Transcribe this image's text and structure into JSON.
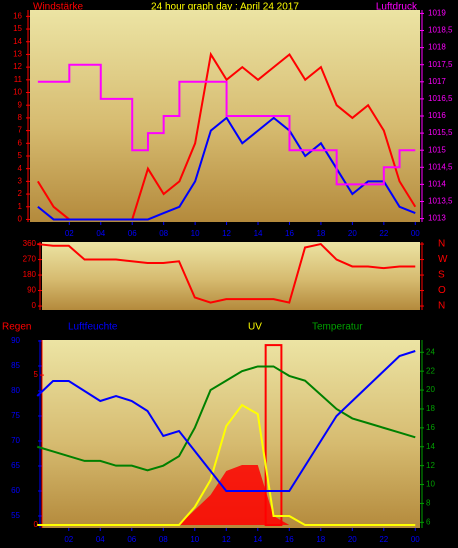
{
  "chart_data": [
    {
      "type": "line",
      "title": "24 hour graph day : April 24 2017",
      "y_label": "Windstärke",
      "y2_label": "Luftdruck",
      "x": [
        0,
        1,
        2,
        3,
        4,
        5,
        6,
        7,
        8,
        9,
        10,
        11,
        12,
        13,
        14,
        15,
        16,
        17,
        18,
        19,
        20,
        21,
        22,
        23,
        24
      ],
      "xlim": [
        -0.5,
        24.3
      ],
      "xticks": [
        {
          "value": 2,
          "label": "02"
        },
        {
          "value": 4,
          "label": "04"
        },
        {
          "value": 6,
          "label": "06"
        },
        {
          "value": 8,
          "label": "08"
        },
        10,
        12,
        14,
        16,
        18,
        20,
        22,
        {
          "value": 24,
          "label": "00"
        }
      ],
      "ylim": [
        -0.2,
        16.5
      ],
      "yticks": [
        0,
        1,
        2,
        3,
        4,
        5,
        6,
        7,
        8,
        9,
        10,
        11,
        12,
        13,
        14,
        15,
        16
      ],
      "y2lim": [
        1012.9,
        1019.1
      ],
      "y2ticks": [
        1013,
        {
          "value": 1013.5,
          "label": "1013,5"
        },
        1014,
        {
          "value": 1014.5,
          "label": "1014,5"
        },
        1015,
        {
          "value": 1015.5,
          "label": "1015,5"
        },
        1016,
        {
          "value": 1016.5,
          "label": "1016,5"
        },
        1017,
        {
          "value": 1017.5,
          "label": "1017,5"
        },
        1018,
        {
          "value": 1018.5,
          "label": "1018,5"
        },
        1019
      ],
      "series": [
        {
          "color": "#ff0000",
          "values": [
            3,
            1,
            0,
            0,
            0,
            0,
            0,
            4,
            2,
            3,
            6,
            13,
            11,
            12,
            11,
            12,
            13,
            11,
            12,
            9,
            8,
            9,
            7,
            3,
            1
          ]
        },
        {
          "color": "#0000ff",
          "values": [
            1,
            0,
            0,
            0,
            0,
            0,
            0,
            0,
            0.5,
            1,
            3,
            7,
            8,
            6,
            7,
            8,
            7,
            5,
            6,
            4,
            2,
            3,
            3,
            1,
            0.5
          ]
        },
        {
          "color": "#ff00ff",
          "axis": "y2",
          "step": true,
          "values": [
            1017,
            1017,
            1017.5,
            1017.5,
            1016.5,
            1016.5,
            1015,
            1015.5,
            1016,
            1017,
            1017,
            1017,
            1016,
            1016,
            1016,
            1016,
            1015,
            1015,
            1015,
            1014,
            1014,
            1014,
            1014.5,
            1015,
            1015
          ]
        }
      ]
    },
    {
      "type": "line",
      "x": [
        0,
        1,
        2,
        3,
        4,
        5,
        6,
        7,
        8,
        9,
        10,
        11,
        12,
        13,
        14,
        15,
        16,
        17,
        18,
        19,
        20,
        21,
        22,
        23,
        24
      ],
      "xlim": [
        0.3,
        24.3
      ],
      "ylim": [
        -23,
        372
      ],
      "yticks": [
        0,
        90,
        180,
        270,
        360
      ],
      "y2lim": [
        -23,
        372
      ],
      "y2ticks": [
        {
          "value": 360,
          "label": "N"
        },
        {
          "value": 270,
          "label": "W"
        },
        {
          "value": 180,
          "label": "S"
        },
        {
          "value": 90,
          "label": "O"
        },
        {
          "value": 0,
          "label": "N"
        }
      ],
      "series": [
        {
          "color": "#ff0000",
          "values": [
            360,
            350,
            350,
            270,
            270,
            270,
            260,
            250,
            250,
            260,
            50,
            20,
            40,
            40,
            40,
            40,
            20,
            340,
            360,
            270,
            230,
            230,
            220,
            230,
            230
          ]
        }
      ]
    },
    {
      "type": "line",
      "y_label": "Luftfeuchte",
      "y2_label": "Temperatur",
      "y3_label": "Regen",
      "uv_label": "UV",
      "x": [
        0,
        1,
        2,
        3,
        4,
        5,
        6,
        7,
        8,
        9,
        10,
        11,
        12,
        13,
        14,
        15,
        16,
        17,
        18,
        19,
        20,
        21,
        22,
        23,
        24
      ],
      "xlim": [
        0.3,
        24.3
      ],
      "xticks": [
        {
          "value": 2,
          "label": "02"
        },
        {
          "value": 4,
          "label": "04"
        },
        {
          "value": 6,
          "label": "06"
        },
        {
          "value": 8,
          "label": "08"
        },
        10,
        12,
        14,
        16,
        18,
        20,
        22,
        {
          "value": 24,
          "label": "00"
        }
      ],
      "ylim": [
        52.6,
        90.2
      ],
      "yticks": [
        55,
        60,
        65,
        70,
        75,
        80,
        85,
        90
      ],
      "y2lim": [
        5.4,
        25.3
      ],
      "y2ticks": [
        6,
        8,
        10,
        12,
        14,
        16,
        18,
        20,
        22,
        24
      ],
      "y3lim": [
        -0.1,
        6.17
      ],
      "y3ticks": [
        0,
        5
      ],
      "series": [
        {
          "color": "#ff0000",
          "axis": "y3",
          "kind": "area",
          "values": [
            0,
            0,
            0,
            0,
            0,
            0,
            0,
            0,
            0,
            0,
            0.5,
            1,
            1.8,
            2,
            2,
            0.3,
            0,
            0,
            0,
            0,
            0,
            0,
            0,
            0,
            0
          ]
        },
        {
          "color": "#ff0000",
          "axis": "y3",
          "kind": "bar",
          "values": [
            0,
            0,
            0,
            0,
            0,
            0,
            0,
            0,
            0,
            0,
            0,
            0,
            0,
            0,
            0,
            6,
            0,
            0,
            0,
            0,
            0,
            0,
            0,
            0,
            0
          ]
        },
        {
          "color": "#ffff00",
          "axis": "y3",
          "values": [
            0,
            0,
            0,
            0,
            0,
            0,
            0,
            0,
            0,
            0,
            0.6,
            1.5,
            3.3,
            4,
            3.7,
            0.3,
            0.3,
            0,
            0,
            0,
            0,
            0,
            0,
            0,
            0
          ]
        },
        {
          "color": "#008000",
          "axis": "y2",
          "values": [
            14,
            13.5,
            13,
            12.5,
            12.5,
            12,
            12,
            11.5,
            12,
            13,
            16,
            20,
            21,
            22,
            22.5,
            22.5,
            21.5,
            21,
            19.5,
            18,
            17,
            16.5,
            16,
            15.5,
            15
          ]
        },
        {
          "color": "#0000ff",
          "values": [
            79,
            82,
            82,
            80,
            78,
            79,
            78,
            76,
            71,
            72,
            68,
            64,
            60,
            60,
            60,
            60,
            60,
            65,
            70,
            75,
            78,
            81,
            84,
            87,
            88
          ]
        }
      ]
    }
  ]
}
